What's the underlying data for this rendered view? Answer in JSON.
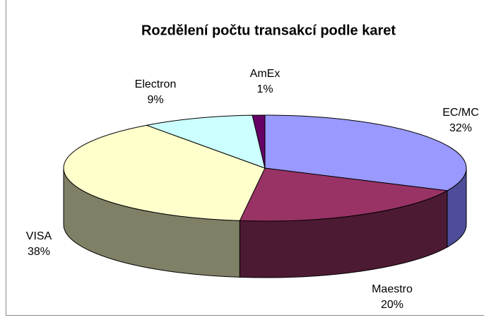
{
  "chart_data": {
    "type": "pie3d",
    "title": "Rozdělení počtu transakcí podle karet",
    "categories": [
      "EC/MC",
      "Maestro",
      "VISA",
      "Electron",
      "AmEx"
    ],
    "values": [
      32,
      20,
      38,
      9,
      1
    ],
    "value_labels": [
      "32%",
      "20%",
      "38%",
      "9%",
      "1%"
    ],
    "colors": [
      "#9999ff",
      "#993366",
      "#ffffcc",
      "#ccffff",
      "#660066"
    ],
    "side_colors": [
      "#4d4d99",
      "#4d1a33",
      "#808066",
      "#669999",
      "#330033"
    ]
  }
}
